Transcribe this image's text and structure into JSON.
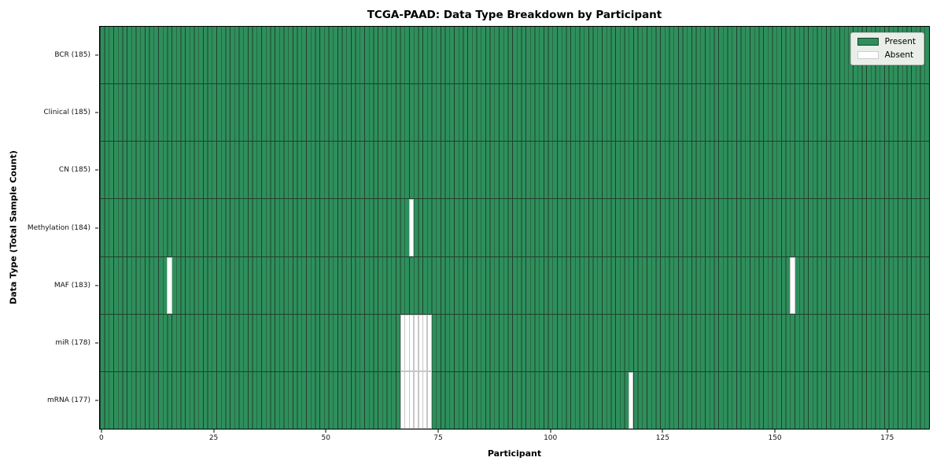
{
  "chart_data": {
    "type": "heatmap",
    "title": "TCGA-PAAD: Data Type Breakdown by Participant",
    "xlabel": "Participant",
    "ylabel": "Data Type (Total Sample Count)",
    "n_participants": 185,
    "x_ticks": [
      0,
      25,
      50,
      75,
      100,
      125,
      150,
      175
    ],
    "legend_position": "upper right",
    "grid": "per-cell edges",
    "legend": [
      {
        "label": "Present",
        "color": "#2e8f5c",
        "edge": "#20402d"
      },
      {
        "label": "Absent",
        "color": "#ffffff",
        "edge": "#cccccc"
      }
    ],
    "colors": {
      "present": "#2e8f5c",
      "absent": "#ffffff",
      "cell_edge": "#20402d",
      "absent_edge": "#c6c6c6",
      "spine": "#000000",
      "legend_bg": "#e9eee9"
    },
    "rows": [
      {
        "data_type": "BCR",
        "label": "BCR (185)",
        "total_samples": 185,
        "absent_participants": []
      },
      {
        "data_type": "Clinical",
        "label": "Clinical (185)",
        "total_samples": 185,
        "absent_participants": []
      },
      {
        "data_type": "CN",
        "label": "CN (185)",
        "total_samples": 185,
        "absent_participants": []
      },
      {
        "data_type": "Methylation",
        "label": "Methylation (184)",
        "total_samples": 184,
        "absent_participants": [
          69
        ]
      },
      {
        "data_type": "MAF",
        "label": "MAF (183)",
        "total_samples": 183,
        "absent_participants": [
          15,
          154
        ]
      },
      {
        "data_type": "miR",
        "label": "miR (178)",
        "total_samples": 178,
        "absent_participants": [
          67,
          68,
          69,
          70,
          71,
          72,
          73
        ]
      },
      {
        "data_type": "mRNA",
        "label": "mRNA (177)",
        "total_samples": 177,
        "absent_participants": [
          67,
          68,
          69,
          70,
          71,
          72,
          73,
          118
        ]
      }
    ]
  }
}
